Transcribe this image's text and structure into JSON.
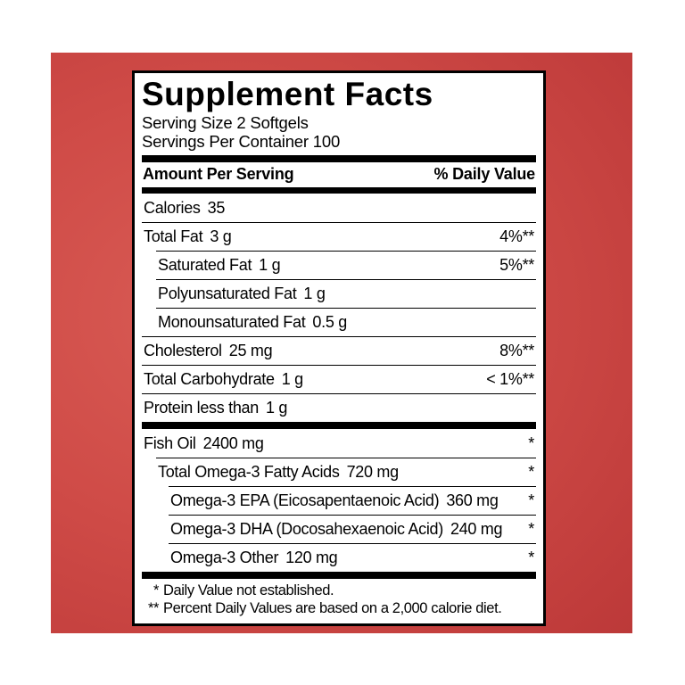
{
  "colors": {
    "page_background": "#ffffff",
    "card_red_light": "#d95c55",
    "card_red_dark": "#b23233",
    "panel_background": "#ffffff",
    "ink": "#000000"
  },
  "label": {
    "title": "Supplement Facts",
    "serving_size": "Serving Size 2 Softgels",
    "servings_per_container": "Servings Per Container 100",
    "header": {
      "amount": "Amount Per Serving",
      "daily_value": "% Daily Value"
    },
    "rows": [
      {
        "name": "Calories",
        "amount": "35",
        "dv": "",
        "indent": 0,
        "sep": false,
        "bar_above": false
      },
      {
        "name": "Total Fat",
        "amount": "3 g",
        "dv": "4%**",
        "indent": 0,
        "sep": true,
        "bar_above": false
      },
      {
        "name": "Saturated Fat",
        "amount": "1 g",
        "dv": "5%**",
        "indent": 1,
        "sep": true,
        "bar_above": false
      },
      {
        "name": "Polyunsaturated Fat",
        "amount": "1 g",
        "dv": "",
        "indent": 1,
        "sep": true,
        "bar_above": false
      },
      {
        "name": "Monounsaturated Fat",
        "amount": "0.5 g",
        "dv": "",
        "indent": 1,
        "sep": true,
        "bar_above": false
      },
      {
        "name": "Cholesterol",
        "amount": "25 mg",
        "dv": "8%**",
        "indent": 0,
        "sep": true,
        "bar_above": false
      },
      {
        "name": "Total Carbohydrate",
        "amount": "1 g",
        "dv": "< 1%**",
        "indent": 0,
        "sep": true,
        "bar_above": false
      },
      {
        "name": "Protein less than",
        "amount": "1 g",
        "dv": "",
        "indent": 0,
        "sep": true,
        "bar_above": false
      },
      {
        "name": "Fish Oil",
        "amount": "2400 mg",
        "dv": "*",
        "indent": 0,
        "sep": false,
        "bar_above": true
      },
      {
        "name": "Total Omega-3 Fatty Acids",
        "amount": "720 mg",
        "dv": "*",
        "indent": 1,
        "sep": true,
        "bar_above": false
      },
      {
        "name": "Omega-3 EPA (Eicosapentaenoic Acid)",
        "amount": "360 mg",
        "dv": "*",
        "indent": 2,
        "sep": true,
        "bar_above": false
      },
      {
        "name": "Omega-3 DHA (Docosahexaenoic Acid)",
        "amount": "240 mg",
        "dv": "*",
        "indent": 2,
        "sep": true,
        "bar_above": false
      },
      {
        "name": "Omega-3 Other",
        "amount": "120 mg",
        "dv": "*",
        "indent": 2,
        "sep": true,
        "bar_above": false
      }
    ],
    "footnotes": [
      {
        "marker": "*",
        "text": "Daily Value not established."
      },
      {
        "marker": "**",
        "text": "Percent Daily Values are based on a 2,000 calorie diet."
      }
    ]
  }
}
